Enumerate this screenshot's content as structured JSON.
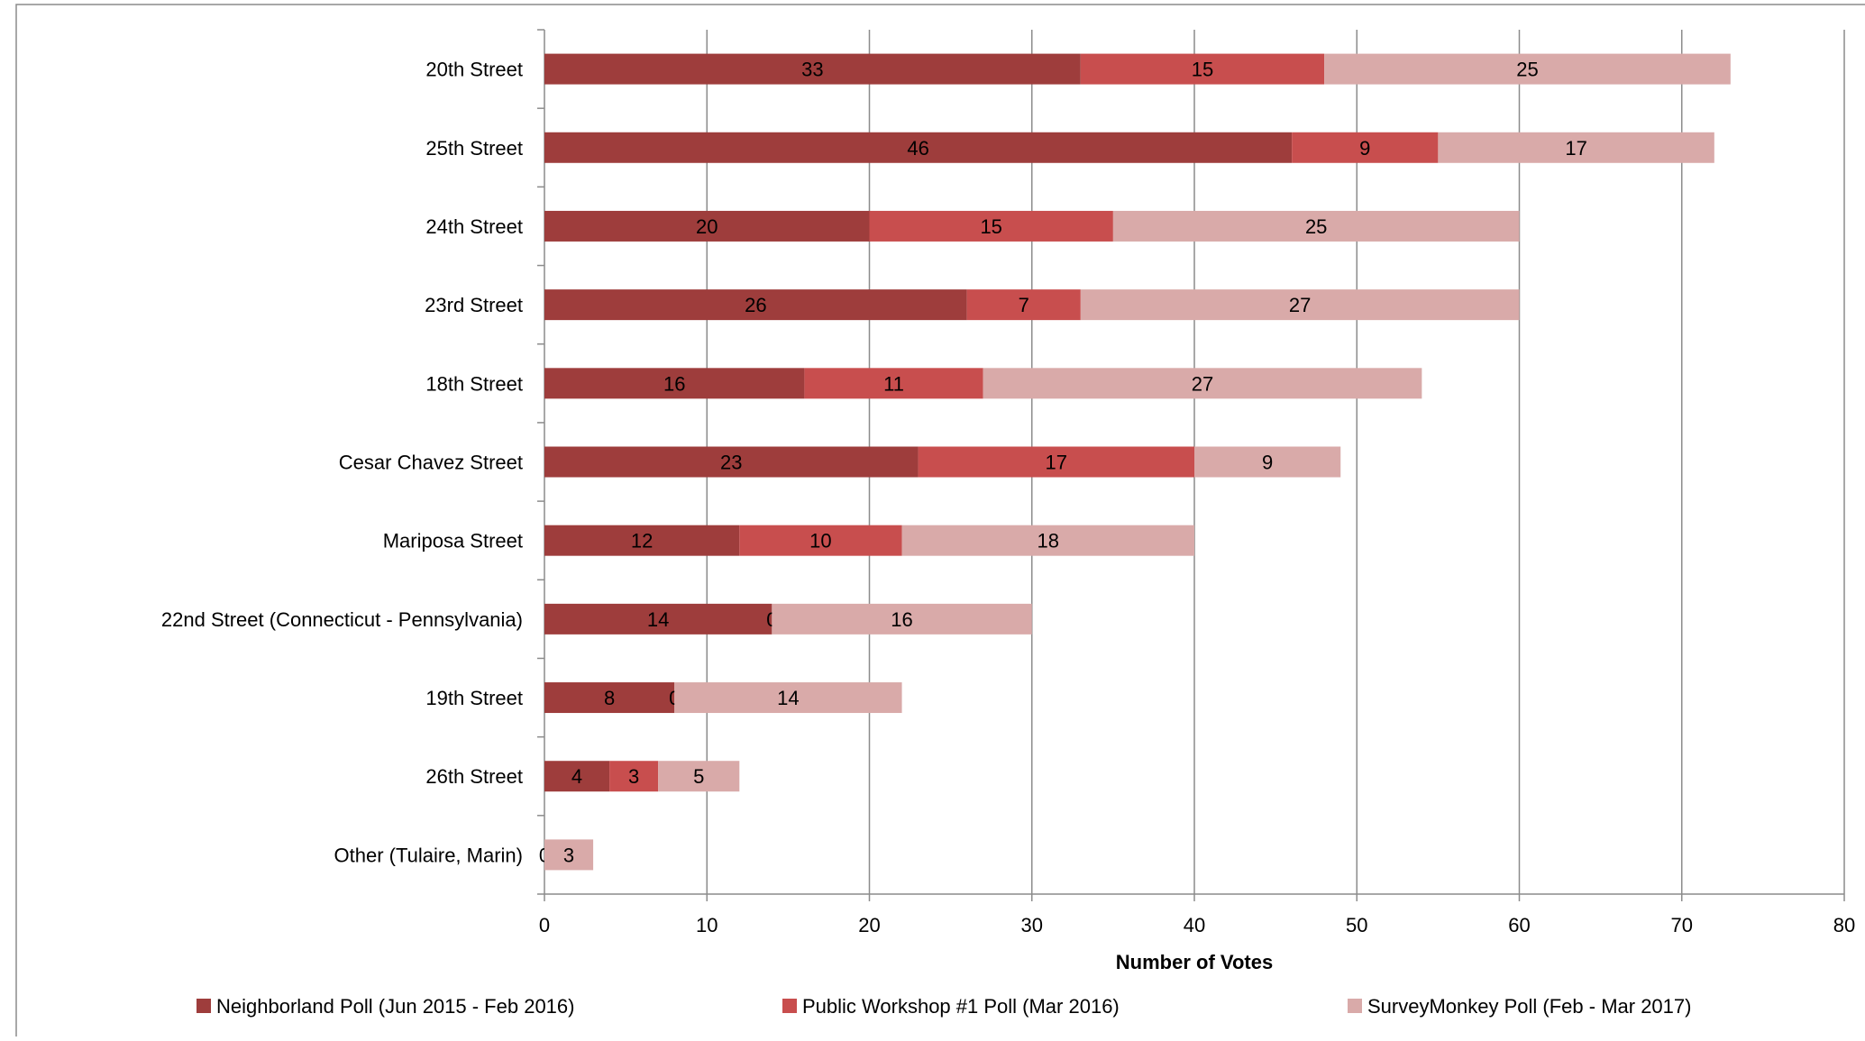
{
  "chart_data": {
    "type": "bar",
    "orientation": "horizontal",
    "stacked": true,
    "categories": [
      "20th Street",
      "25th Street",
      "24th Street",
      "23rd Street",
      "18th Street",
      "Cesar Chavez Street",
      "Mariposa Street",
      "22nd Street (Connecticut - Pennsylvania)",
      "19th Street",
      "26th Street",
      "Other (Tulaire, Marin)"
    ],
    "series": [
      {
        "name": "Neighborland Poll (Jun 2015 - Feb 2016)",
        "color": "#9e3d3c",
        "values": [
          33,
          46,
          20,
          26,
          16,
          23,
          12,
          14,
          8,
          4,
          0
        ]
      },
      {
        "name": "Public Workshop #1 Poll (Mar 2016)",
        "color": "#c84e4e",
        "values": [
          15,
          9,
          15,
          7,
          11,
          17,
          10,
          0,
          0,
          3,
          null
        ]
      },
      {
        "name": "SurveyMonkey Poll (Feb - Mar 2017)",
        "color": "#d9aaa9",
        "values": [
          25,
          17,
          25,
          27,
          27,
          9,
          18,
          16,
          14,
          5,
          3
        ]
      }
    ],
    "xlabel": "Number of Votes",
    "ylabel": "",
    "xlim": [
      0,
      80
    ],
    "xticks": [
      0,
      10,
      20,
      30,
      40,
      50,
      60,
      70,
      80
    ],
    "grid": "vertical",
    "legend": "bottom",
    "data_labels": true
  }
}
